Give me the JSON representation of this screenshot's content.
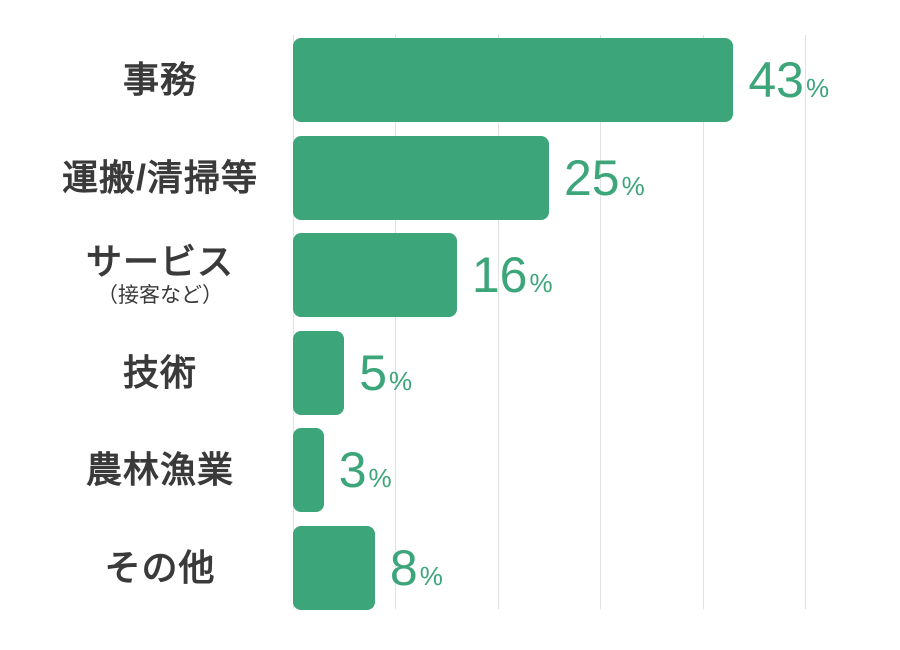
{
  "chart_data": {
    "type": "bar",
    "orientation": "horizontal",
    "title": "",
    "xlabel": "",
    "ylabel": "",
    "xlim": [
      0,
      50
    ],
    "gridline_step_percent": 10,
    "grid": true,
    "legend": false,
    "unit": "%",
    "categories": [
      "事務",
      "運搬/清掃等",
      "サービス（接客など）",
      "技術",
      "農林漁業",
      "その他"
    ],
    "values": [
      43,
      25,
      16,
      5,
      3,
      8
    ],
    "rows": [
      {
        "label": "事務",
        "sublabel": "",
        "value": 43
      },
      {
        "label": "運搬/清掃等",
        "sublabel": "",
        "value": 25
      },
      {
        "label": "サービス",
        "sublabel": "（接客など）",
        "value": 16
      },
      {
        "label": "技術",
        "sublabel": "",
        "value": 5
      },
      {
        "label": "農林漁業",
        "sublabel": "",
        "value": 3
      },
      {
        "label": "その他",
        "sublabel": "",
        "value": 8
      }
    ],
    "colors": {
      "bar": "#3da57a",
      "value_text": "#3da57a",
      "label_text": "#3a3a3a",
      "gridline": "#e1e1e1",
      "background": "#ffffff"
    }
  }
}
